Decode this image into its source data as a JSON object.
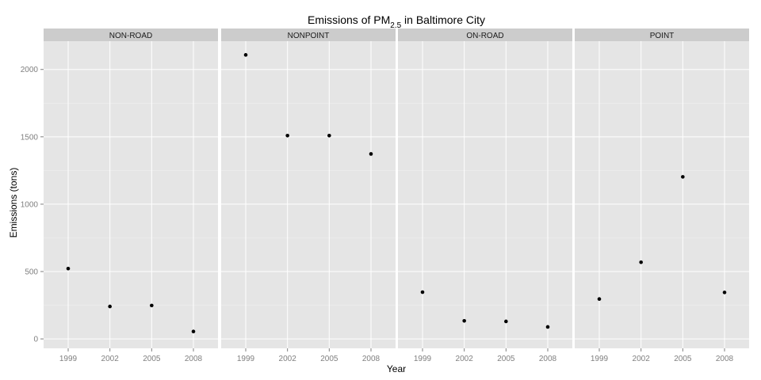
{
  "chart_data": {
    "type": "scatter",
    "title": {
      "prefix": "Emissions of PM",
      "subscript": "2.5",
      "suffix": " in Baltimore City"
    },
    "xlabel": "Year",
    "ylabel": "Emissions (tons)",
    "x_ticks": [
      "1999",
      "2002",
      "2005",
      "2008"
    ],
    "y_ticks": [
      0,
      500,
      1000,
      1500,
      2000
    ],
    "ylim": [
      -70,
      2210
    ],
    "grid": true,
    "facets": [
      {
        "name": "NON-ROAD",
        "x": [
          "1999",
          "2002",
          "2005",
          "2008"
        ],
        "y": [
          522,
          241,
          248,
          55
        ]
      },
      {
        "name": "NONPOINT",
        "x": [
          "1999",
          "2002",
          "2005",
          "2008"
        ],
        "y": [
          2108,
          1509,
          1509,
          1373
        ]
      },
      {
        "name": "ON-ROAD",
        "x": [
          "1999",
          "2002",
          "2005",
          "2008"
        ],
        "y": [
          347,
          134,
          130,
          89
        ]
      },
      {
        "name": "POINT",
        "x": [
          "1999",
          "2002",
          "2005",
          "2008"
        ],
        "y": [
          296,
          569,
          1203,
          345
        ]
      }
    ]
  },
  "colors": {
    "panel_background": "#e5e5e5",
    "strip_background": "#cccccc",
    "gridline": "#ffffff",
    "point": "#000000",
    "tick_text": "#7f7f7f"
  }
}
